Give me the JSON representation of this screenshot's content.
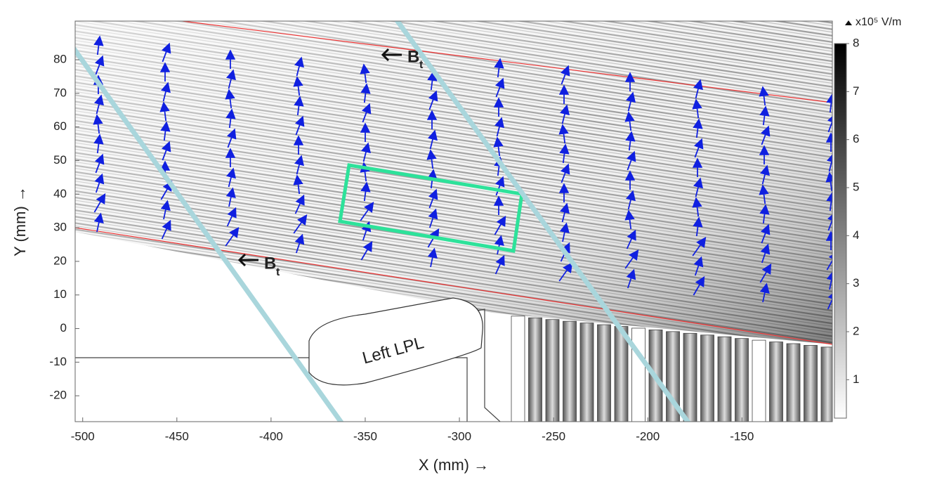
{
  "chart_data": {
    "type": "field",
    "xlabel": "X (mm) →",
    "ylabel": "Y (mm) →",
    "xlim": [
      -504,
      -102
    ],
    "ylim": [
      -27.7,
      91.5
    ],
    "xticks": [
      -500,
      -450,
      -400,
      -350,
      -300,
      -250,
      -200,
      -150
    ],
    "yticks": [
      -20,
      -10,
      0,
      10,
      20,
      30,
      40,
      50,
      60,
      70,
      80
    ],
    "colorbar": {
      "label": "x10⁵ V/m",
      "clim": [
        0.2,
        8
      ],
      "ticks": [
        1,
        2,
        3,
        4,
        5,
        6,
        7,
        8
      ]
    },
    "annotations": [
      {
        "text": "B",
        "subscript": "t"
      },
      {
        "text": "B",
        "subscript": "t"
      },
      {
        "text": "Left LPL"
      }
    ]
  }
}
